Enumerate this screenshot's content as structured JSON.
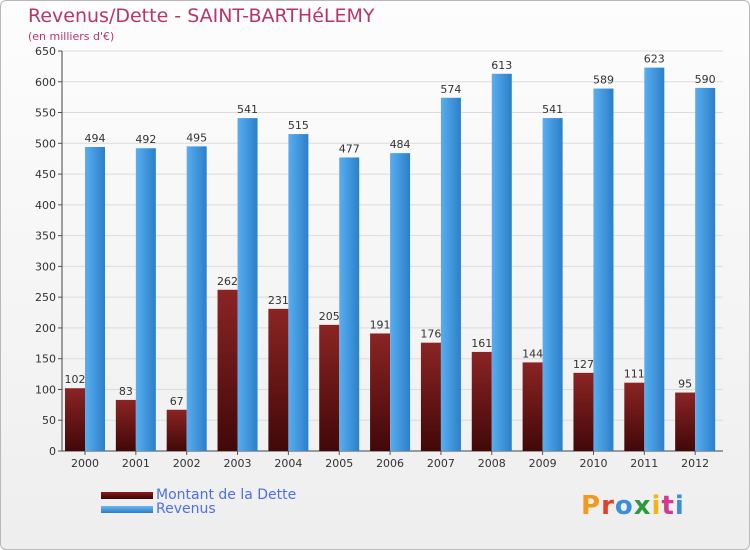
{
  "header": {
    "title": "Revenus/Dette - SAINT-BARTHéLEMY",
    "subtitle": "(en milliers d'€)"
  },
  "chart_data": {
    "type": "bar",
    "categories": [
      "2000",
      "2001",
      "2002",
      "2003",
      "2004",
      "2005",
      "2006",
      "2007",
      "2008",
      "2009",
      "2010",
      "2011",
      "2012"
    ],
    "series": [
      {
        "name": "Montant de la Dette",
        "color": "#8b1a1a",
        "values": [
          102,
          83,
          67,
          262,
          231,
          205,
          191,
          176,
          161,
          144,
          127,
          111,
          95
        ]
      },
      {
        "name": "Revenus",
        "color": "#3f9be0",
        "values": [
          494,
          492,
          495,
          541,
          515,
          477,
          484,
          574,
          613,
          541,
          589,
          623,
          590
        ]
      }
    ],
    "ylim": [
      0,
      650
    ],
    "yticks": [
      0,
      50,
      100,
      150,
      200,
      250,
      300,
      350,
      400,
      450,
      500,
      550,
      600,
      650
    ],
    "grid": true,
    "legend": "bottom-left"
  },
  "logo": {
    "letters": [
      "P",
      "r",
      "o",
      "x",
      "i",
      "t",
      "i"
    ],
    "colors": [
      "#f39a1d",
      "#e0412a",
      "#3b8fd8",
      "#2d9a3e",
      "#f2b41a",
      "#d23a8d",
      "#3b8fd8"
    ]
  }
}
